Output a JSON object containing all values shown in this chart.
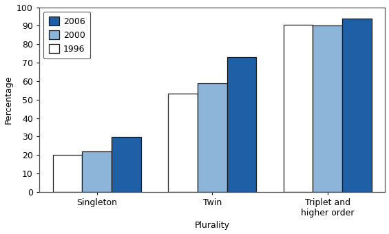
{
  "categories": [
    "Singleton",
    "Twin",
    "Triplet and\nhigher order"
  ],
  "series": {
    "1996": [
      19.9,
      53.4,
      90.4
    ],
    "2000": [
      22.1,
      58.9,
      90.2
    ],
    "2006": [
      29.6,
      72.9,
      93.9
    ]
  },
  "colors": {
    "2006": "#1f5fa6",
    "2000": "#8db4d9",
    "1996": "#ffffff"
  },
  "bar_edge_color": "#1a1a1a",
  "bar_width": 0.28,
  "ylabel": "Percentage",
  "xlabel": "Plurality",
  "ylim": [
    0,
    100
  ],
  "yticks": [
    0,
    10,
    20,
    30,
    40,
    50,
    60,
    70,
    80,
    90,
    100
  ],
  "legend_order": [
    "2006",
    "2000",
    "1996"
  ],
  "background_color": "#ffffff",
  "figsize": [
    5.65,
    3.4
  ],
  "dpi": 100
}
